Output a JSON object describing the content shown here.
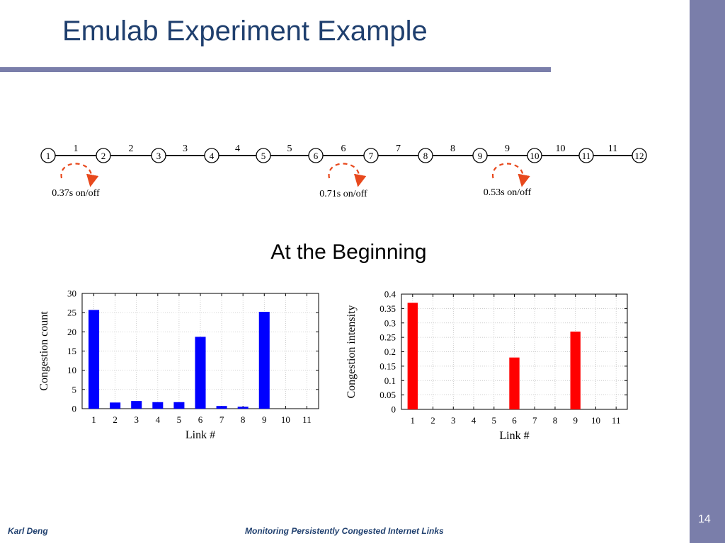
{
  "slide": {
    "title": "Emulab Experiment Example",
    "subtitle": "At the Beginning",
    "number": "14",
    "footer_author": "Karl Deng",
    "footer_title": "Monitoring Persistently Congested Internet Links",
    "accent_color": "#7a7eaa",
    "title_color": "#1f3f6e"
  },
  "topology": {
    "nodes": [
      "1",
      "2",
      "3",
      "4",
      "5",
      "6",
      "7",
      "8",
      "9",
      "10",
      "11",
      "12"
    ],
    "links": [
      "1",
      "2",
      "3",
      "4",
      "5",
      "6",
      "7",
      "8",
      "9",
      "10",
      "11"
    ],
    "onoff": [
      {
        "link": 1,
        "label": "0.37s on/off"
      },
      {
        "link": 6,
        "label": "0.71s on/off"
      },
      {
        "link": 9,
        "label": "0.53s on/off"
      }
    ],
    "arrow_color": "#e8491d"
  },
  "chart_data": [
    {
      "type": "bar",
      "categories": [
        "1",
        "2",
        "3",
        "4",
        "5",
        "6",
        "7",
        "8",
        "9",
        "10",
        "11"
      ],
      "values": [
        25.7,
        1.6,
        2.0,
        1.7,
        1.7,
        18.7,
        0.7,
        0.5,
        25.2,
        0,
        0
      ],
      "xlabel": "Link #",
      "ylabel": "Congestion count",
      "ylim": [
        0,
        30
      ],
      "yticks": [
        "0",
        "5",
        "10",
        "15",
        "20",
        "25",
        "30"
      ],
      "grid": true,
      "color": "#0000ff"
    },
    {
      "type": "bar",
      "categories": [
        "1",
        "2",
        "3",
        "4",
        "5",
        "6",
        "7",
        "8",
        "9",
        "10",
        "11"
      ],
      "values": [
        0.37,
        0,
        0,
        0,
        0,
        0.18,
        0,
        0,
        0.27,
        0,
        0
      ],
      "xlabel": "Link #",
      "ylabel": "Congestion intensity",
      "ylim": [
        0,
        0.4
      ],
      "yticks": [
        "0",
        "0.05",
        "0.1",
        "0.15",
        "0.2",
        "0.25",
        "0.3",
        "0.35",
        "0.4"
      ],
      "grid": true,
      "color": "#ff0000"
    }
  ]
}
